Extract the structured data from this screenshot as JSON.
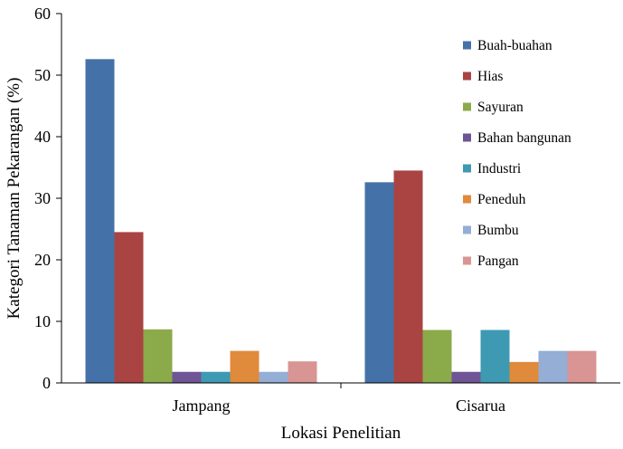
{
  "chart_data": {
    "type": "bar",
    "title": "",
    "xlabel": "Lokasi Penelitian",
    "ylabel": "Kategori Tanaman Pekarangan (%)",
    "ylim": [
      0,
      60
    ],
    "yticks": [
      0,
      10,
      20,
      30,
      40,
      50,
      60
    ],
    "categories": [
      "Jampang",
      "Cisarua"
    ],
    "grid": false,
    "legend_position": "right",
    "series": [
      {
        "name": "Buah-buahan",
        "color": "#4472A8",
        "values": [
          52.6,
          32.6
        ]
      },
      {
        "name": "Hias",
        "color": "#A94442",
        "values": [
          24.5,
          34.5
        ]
      },
      {
        "name": "Sayuran",
        "color": "#8BAA4A",
        "values": [
          8.7,
          8.6
        ]
      },
      {
        "name": "Bahan bangunan",
        "color": "#6F5596",
        "values": [
          1.8,
          1.8
        ]
      },
      {
        "name": "Industri",
        "color": "#3D9AB2",
        "values": [
          1.8,
          8.6
        ]
      },
      {
        "name": "Peneduh",
        "color": "#E08A3C",
        "values": [
          5.2,
          3.4
        ]
      },
      {
        "name": "Bumbu",
        "color": "#94AED6",
        "values": [
          1.8,
          5.2
        ]
      },
      {
        "name": "Pangan",
        "color": "#D99494",
        "values": [
          3.5,
          5.2
        ]
      }
    ]
  }
}
